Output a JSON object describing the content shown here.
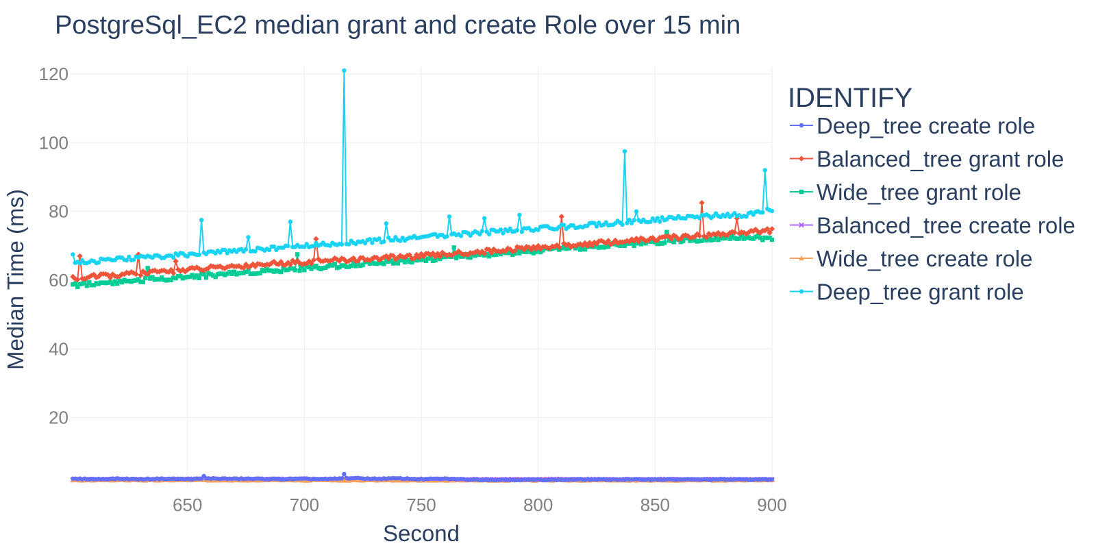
{
  "chart_data": {
    "type": "line",
    "title": "PostgreSql_EC2 median grant and create Role over 15 min",
    "xlabel": "Second",
    "ylabel": "Median Time (ms)",
    "xlim": [
      600,
      900
    ],
    "ylim": [
      0,
      122
    ],
    "x_ticks": [
      650,
      700,
      750,
      800,
      850,
      900
    ],
    "y_ticks": [
      20,
      40,
      60,
      80,
      100,
      120
    ],
    "grid": true,
    "legend": {
      "title": "IDENTIFY",
      "placement": "right"
    },
    "x": [
      600,
      610,
      620,
      630,
      640,
      650,
      660,
      670,
      680,
      690,
      700,
      710,
      720,
      730,
      740,
      750,
      760,
      770,
      780,
      790,
      800,
      810,
      820,
      830,
      840,
      850,
      860,
      870,
      880,
      890,
      900
    ],
    "series": [
      {
        "name": "Deep_tree create role",
        "color": "#636efa",
        "marker": "circle",
        "values": [
          2.2,
          2.1,
          2.2,
          2.1,
          2.2,
          2.1,
          2.3,
          2.2,
          2.2,
          2.1,
          2.2,
          2.1,
          2.4,
          2.2,
          2.3,
          2.1,
          2.2,
          2.0,
          1.9,
          1.9,
          1.9,
          1.9,
          2.0,
          2.0,
          2.0,
          2.0,
          2.0,
          2.0,
          2.0,
          2.0,
          2.0
        ],
        "spikes": [
          [
            657,
            3.0
          ],
          [
            717,
            3.6
          ]
        ]
      },
      {
        "name": "Balanced_tree grant role",
        "color": "#ef553b",
        "marker": "diamond",
        "values": [
          60.5,
          61.0,
          61.5,
          62.0,
          62.5,
          63.0,
          63.5,
          64.0,
          64.5,
          65.0,
          65.3,
          65.7,
          66.0,
          66.3,
          66.7,
          67.0,
          67.5,
          68.0,
          68.5,
          69.0,
          69.5,
          70.0,
          70.5,
          71.0,
          71.5,
          72.0,
          72.5,
          73.0,
          73.5,
          74.0,
          74.5
        ],
        "spikes": [
          [
            604,
            67
          ],
          [
            629,
            67.5
          ],
          [
            645,
            65.5
          ],
          [
            705,
            72
          ],
          [
            810,
            78.5
          ],
          [
            870,
            82.5
          ],
          [
            885,
            78
          ]
        ]
      },
      {
        "name": "Wide_tree grant role",
        "color": "#00cc96",
        "marker": "square",
        "values": [
          58.5,
          59.0,
          59.5,
          60.0,
          60.5,
          61.0,
          61.5,
          62.0,
          62.5,
          63.0,
          63.5,
          64.0,
          64.5,
          65.0,
          65.5,
          66.0,
          66.5,
          67.0,
          67.5,
          68.0,
          68.5,
          69.0,
          69.5,
          70.0,
          70.5,
          71.0,
          71.5,
          72.0,
          72.5,
          72.5,
          72.0
        ],
        "spikes": [
          [
            633,
            63.5
          ],
          [
            697,
            67.5
          ],
          [
            764,
            69.5
          ],
          [
            855,
            74
          ]
        ]
      },
      {
        "name": "Balanced_tree create role",
        "color": "#ab63fa",
        "marker": "cross",
        "values": [
          2.0,
          2.0,
          2.1,
          2.0,
          2.0,
          2.1,
          2.0,
          2.0,
          2.0,
          2.1,
          2.0,
          2.0,
          2.1,
          2.0,
          2.0,
          2.0,
          2.0,
          2.0,
          2.0,
          2.0,
          2.0,
          2.0,
          2.0,
          2.0,
          2.0,
          2.0,
          2.0,
          2.0,
          2.0,
          2.0,
          2.0
        ],
        "spikes": []
      },
      {
        "name": "Wide_tree create role",
        "color": "#ffa15a",
        "marker": "triangle",
        "values": [
          1.8,
          1.8,
          1.9,
          1.8,
          1.8,
          1.9,
          1.8,
          1.8,
          1.8,
          1.9,
          1.8,
          1.8,
          1.8,
          1.8,
          1.8,
          1.8,
          1.8,
          1.8,
          1.8,
          1.8,
          1.8,
          1.8,
          1.8,
          1.8,
          1.8,
          1.8,
          1.8,
          1.8,
          1.8,
          1.8,
          1.8
        ],
        "spikes": []
      },
      {
        "name": "Deep_tree grant role",
        "color": "#19d3f3",
        "marker": "circle",
        "values": [
          65.0,
          65.5,
          66.0,
          66.5,
          67.0,
          67.5,
          68.0,
          68.5,
          69.0,
          69.5,
          70.0,
          70.5,
          71.0,
          71.5,
          72.0,
          72.5,
          73.0,
          73.5,
          74.0,
          74.5,
          75.0,
          75.5,
          76.0,
          76.5,
          77.0,
          77.5,
          78.0,
          78.5,
          79.0,
          79.0,
          80.5
        ],
        "spikes": [
          [
            601,
            67.5
          ],
          [
            656,
            77.5
          ],
          [
            676,
            72.5
          ],
          [
            694,
            77
          ],
          [
            717,
            121
          ],
          [
            735,
            76.5
          ],
          [
            762,
            78.5
          ],
          [
            777,
            78
          ],
          [
            792,
            79
          ],
          [
            837,
            97.5
          ],
          [
            842,
            80
          ],
          [
            897,
            92
          ]
        ]
      }
    ]
  }
}
